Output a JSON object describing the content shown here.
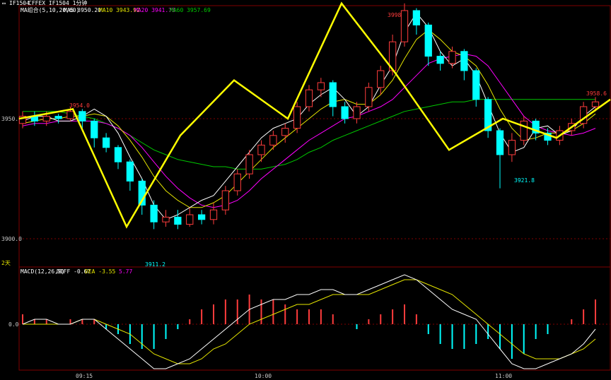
{
  "window": {
    "title_prefix": "IF1504",
    "title_detail": "CFFEX IF1504 1分钟"
  },
  "ma_legend": {
    "label": "MA组合(5,10,20,60)",
    "items": [
      {
        "text": "MA5 3950.20",
        "color": "#ffffff"
      },
      {
        "text": "MA10 3943.92",
        "color": "#e6e600"
      },
      {
        "text": "MA20 3941.73",
        "color": "#ff00ff"
      },
      {
        "text": "MA60 3957.69",
        "color": "#00c800"
      }
    ]
  },
  "macd_legend": {
    "label": "MACD(12,26,9)",
    "diff": "DIFF -0.67",
    "dea": "DEA -3.55",
    "macd": "5.77"
  },
  "price_axis": {
    "upper": "3950.0",
    "lower": "3900.0"
  },
  "macd_axis": {
    "zero": "0.0"
  },
  "time_axis": [
    "09:15",
    "10:00",
    "11:00"
  ],
  "day_marker": "2天",
  "annotations": {
    "p1": "3954.0",
    "p2": "3911.2",
    "p3": "3998.0",
    "p4": "3921.8",
    "p5": "3958.6"
  },
  "colors": {
    "up": "#ff3c3c",
    "down": "#00ffff",
    "zigzag": "#ffff00",
    "grid": "#800000",
    "axis_text": "#c8c8c8"
  },
  "chart_data": [
    {
      "type": "candlestick",
      "title": "IF1504 1分钟",
      "ylim": [
        3898,
        4000
      ],
      "zigzag": [
        3950,
        3954,
        3905,
        3943,
        3966,
        3950,
        3998,
        3969,
        3937,
        3950,
        3942,
        3958
      ],
      "ma5": [
        3949,
        3951,
        3951,
        3949,
        3949,
        3951,
        3954,
        3951,
        3944,
        3934,
        3925,
        3914,
        3908,
        3910,
        3913,
        3916,
        3918,
        3924,
        3930,
        3936,
        3942,
        3946,
        3948,
        3950,
        3956,
        3960,
        3963,
        3958,
        3951,
        3955,
        3964,
        3972,
        3986,
        3994,
        3988,
        3978,
        3972,
        3975,
        3968,
        3956,
        3944,
        3936,
        3938,
        3946,
        3947,
        3943,
        3945,
        3951,
        3955
      ],
      "ma10": [
        3948,
        3949,
        3950,
        3950,
        3951,
        3951,
        3952,
        3951,
        3947,
        3941,
        3934,
        3926,
        3920,
        3916,
        3913,
        3913,
        3915,
        3918,
        3923,
        3928,
        3933,
        3938,
        3942,
        3946,
        3950,
        3954,
        3957,
        3958,
        3956,
        3956,
        3960,
        3966,
        3975,
        3983,
        3987,
        3983,
        3978,
        3976,
        3972,
        3964,
        3954,
        3946,
        3941,
        3942,
        3944,
        3944,
        3945,
        3948,
        3952
      ],
      "ma20": [
        3947,
        3948,
        3948,
        3949,
        3949,
        3949,
        3949,
        3948,
        3946,
        3943,
        3938,
        3932,
        3926,
        3921,
        3917,
        3914,
        3913,
        3914,
        3916,
        3920,
        3925,
        3929,
        3933,
        3937,
        3941,
        3944,
        3947,
        3950,
        3951,
        3953,
        3955,
        3958,
        3963,
        3968,
        3973,
        3975,
        3976,
        3977,
        3976,
        3972,
        3965,
        3958,
        3951,
        3947,
        3945,
        3944,
        3943,
        3944,
        3946
      ],
      "ma60": [
        3953,
        3953,
        3953,
        3953,
        3952,
        3951,
        3950,
        3948,
        3946,
        3943,
        3940,
        3937,
        3935,
        3933,
        3932,
        3931,
        3930,
        3930,
        3929,
        3929,
        3929,
        3930,
        3931,
        3933,
        3936,
        3938,
        3941,
        3943,
        3945,
        3947,
        3949,
        3951,
        3953,
        3954,
        3955,
        3956,
        3957,
        3957,
        3958,
        3958,
        3958,
        3958,
        3958,
        3958,
        3958,
        3958,
        3958,
        3958,
        3958
      ],
      "candles": [
        {
          "o": 3948,
          "c": 3951,
          "h": 3953,
          "l": 3946
        },
        {
          "o": 3951,
          "c": 3949,
          "h": 3953,
          "l": 3947
        },
        {
          "o": 3949,
          "c": 3951,
          "h": 3953,
          "l": 3947
        },
        {
          "o": 3951,
          "c": 3950,
          "h": 3952,
          "l": 3948
        },
        {
          "o": 3950,
          "c": 3953,
          "h": 3955,
          "l": 3949
        },
        {
          "o": 3953,
          "c": 3949,
          "h": 3954,
          "l": 3946
        },
        {
          "o": 3949,
          "c": 3942,
          "h": 3950,
          "l": 3938
        },
        {
          "o": 3942,
          "c": 3938,
          "h": 3944,
          "l": 3936
        },
        {
          "o": 3938,
          "c": 3932,
          "h": 3939,
          "l": 3929
        },
        {
          "o": 3932,
          "c": 3924,
          "h": 3933,
          "l": 3920
        },
        {
          "o": 3924,
          "c": 3914,
          "h": 3925,
          "l": 3910
        },
        {
          "o": 3914,
          "c": 3907,
          "h": 3916,
          "l": 3904
        },
        {
          "o": 3907,
          "c": 3909,
          "h": 3912,
          "l": 3905
        },
        {
          "o": 3909,
          "c": 3906,
          "h": 3912,
          "l": 3904
        },
        {
          "o": 3906,
          "c": 3910,
          "h": 3913,
          "l": 3905
        },
        {
          "o": 3910,
          "c": 3908,
          "h": 3912,
          "l": 3906
        },
        {
          "o": 3908,
          "c": 3912,
          "h": 3915,
          "l": 3906
        },
        {
          "o": 3912,
          "c": 3920,
          "h": 3922,
          "l": 3910
        },
        {
          "o": 3920,
          "c": 3927,
          "h": 3929,
          "l": 3918
        },
        {
          "o": 3927,
          "c": 3935,
          "h": 3937,
          "l": 3925
        },
        {
          "o": 3935,
          "c": 3939,
          "h": 3941,
          "l": 3932
        },
        {
          "o": 3939,
          "c": 3943,
          "h": 3945,
          "l": 3937
        },
        {
          "o": 3943,
          "c": 3946,
          "h": 3948,
          "l": 3940
        },
        {
          "o": 3946,
          "c": 3955,
          "h": 3957,
          "l": 3944
        },
        {
          "o": 3955,
          "c": 3962,
          "h": 3964,
          "l": 3953
        },
        {
          "o": 3962,
          "c": 3965,
          "h": 3967,
          "l": 3959
        },
        {
          "o": 3965,
          "c": 3955,
          "h": 3966,
          "l": 3951
        },
        {
          "o": 3955,
          "c": 3950,
          "h": 3957,
          "l": 3948
        },
        {
          "o": 3950,
          "c": 3955,
          "h": 3957,
          "l": 3948
        },
        {
          "o": 3955,
          "c": 3963,
          "h": 3965,
          "l": 3953
        },
        {
          "o": 3963,
          "c": 3970,
          "h": 3972,
          "l": 3960
        },
        {
          "o": 3970,
          "c": 3982,
          "h": 3985,
          "l": 3968
        },
        {
          "o": 3982,
          "c": 3995,
          "h": 3998,
          "l": 3980
        },
        {
          "o": 3995,
          "c": 3989,
          "h": 3996,
          "l": 3985
        },
        {
          "o": 3989,
          "c": 3976,
          "h": 3990,
          "l": 3972
        },
        {
          "o": 3976,
          "c": 3973,
          "h": 3978,
          "l": 3970
        },
        {
          "o": 3973,
          "c": 3978,
          "h": 3980,
          "l": 3971
        },
        {
          "o": 3978,
          "c": 3970,
          "h": 3979,
          "l": 3966
        },
        {
          "o": 3970,
          "c": 3958,
          "h": 3971,
          "l": 3955
        },
        {
          "o": 3958,
          "c": 3945,
          "h": 3959,
          "l": 3942
        },
        {
          "o": 3945,
          "c": 3935,
          "h": 3946,
          "l": 3921
        },
        {
          "o": 3935,
          "c": 3941,
          "h": 3944,
          "l": 3932
        },
        {
          "o": 3941,
          "c": 3949,
          "h": 3951,
          "l": 3939
        },
        {
          "o": 3949,
          "c": 3944,
          "h": 3950,
          "l": 3941
        },
        {
          "o": 3944,
          "c": 3941,
          "h": 3946,
          "l": 3939
        },
        {
          "o": 3941,
          "c": 3945,
          "h": 3947,
          "l": 3939
        },
        {
          "o": 3945,
          "c": 3948,
          "h": 3950,
          "l": 3943
        },
        {
          "o": 3948,
          "c": 3955,
          "h": 3957,
          "l": 3946
        },
        {
          "o": 3955,
          "c": 3957,
          "h": 3959,
          "l": 3953
        }
      ]
    },
    {
      "type": "bar",
      "title": "MACD(12,26,9)",
      "ylim": [
        -10,
        10
      ],
      "series": [
        {
          "name": "DIFF",
          "values": [
            0,
            1,
            1,
            0,
            0,
            1,
            1,
            -1,
            -3,
            -5,
            -7,
            -9,
            -9,
            -8,
            -7,
            -5,
            -3,
            -1,
            1,
            3,
            4,
            5,
            5,
            6,
            6,
            7,
            7,
            6,
            6,
            7,
            8,
            9,
            10,
            9,
            7,
            5,
            3,
            2,
            1,
            -2,
            -5,
            -8,
            -9,
            -9,
            -8,
            -7,
            -6,
            -4,
            -1
          ]
        },
        {
          "name": "DEA",
          "values": [
            0,
            0,
            0,
            0,
            0,
            1,
            1,
            0,
            -1,
            -2,
            -4,
            -6,
            -7,
            -8,
            -8,
            -7,
            -5,
            -4,
            -2,
            0,
            1,
            2,
            3,
            4,
            4,
            5,
            6,
            6,
            6,
            6,
            7,
            8,
            9,
            9,
            8,
            7,
            6,
            4,
            2,
            0,
            -2,
            -4,
            -6,
            -7,
            -7,
            -7,
            -6,
            -5,
            -3
          ]
        },
        {
          "name": "MACD",
          "values": [
            2,
            1,
            1,
            0,
            1,
            1,
            1,
            -1,
            -2,
            -4,
            -5,
            -5,
            -3,
            -1,
            1,
            3,
            4,
            5,
            5,
            6,
            5,
            5,
            4,
            3,
            3,
            3,
            2,
            0,
            -1,
            1,
            2,
            3,
            4,
            2,
            -2,
            -4,
            -5,
            -5,
            -4,
            -3,
            -5,
            -7,
            -6,
            -3,
            -2,
            0,
            1,
            3,
            5
          ]
        }
      ]
    }
  ]
}
